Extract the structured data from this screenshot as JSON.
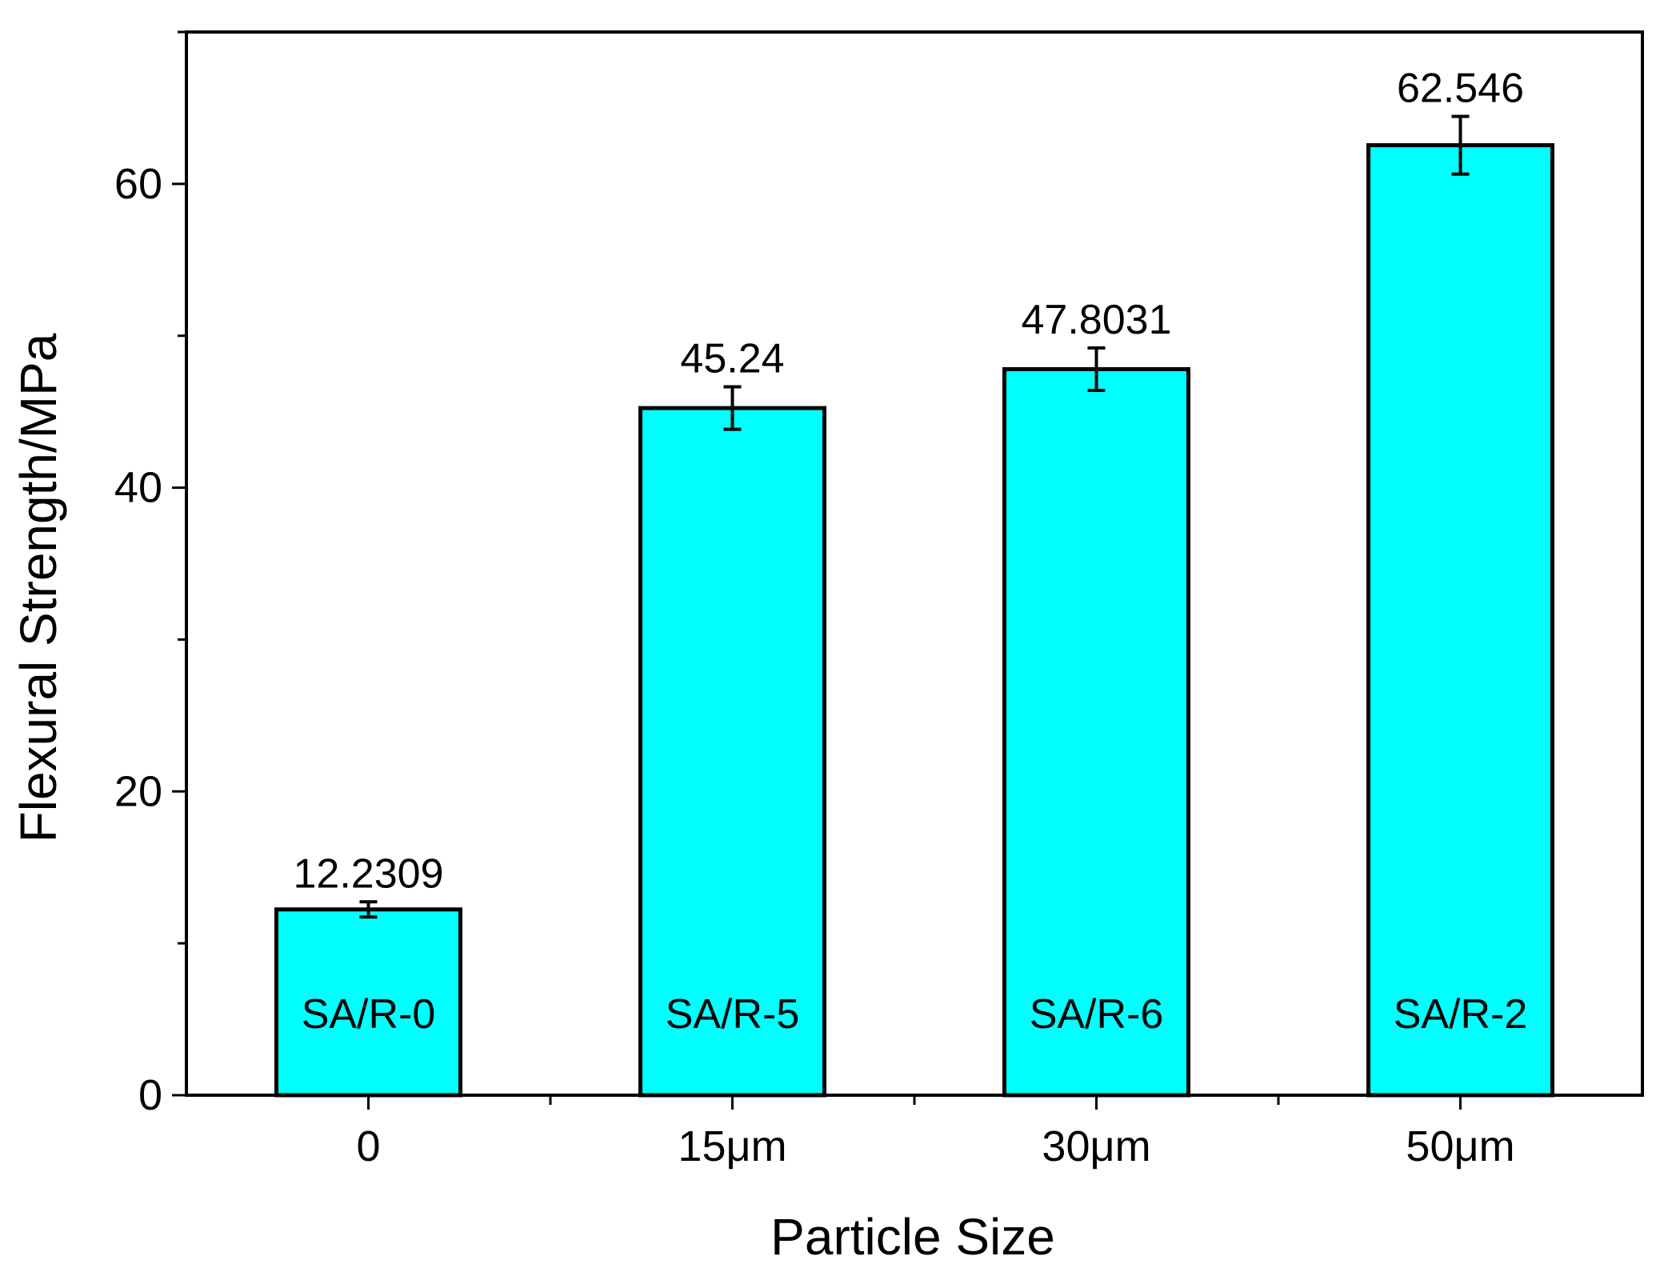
{
  "chart_data": {
    "type": "bar",
    "xlabel": "Particle Size",
    "ylabel": "Flexural Strength/MPa",
    "ylim": [
      0,
      70
    ],
    "yticks": [
      0,
      20,
      40,
      60
    ],
    "y_minor_step": 10,
    "grid": false,
    "categories": [
      "0",
      "15μm",
      "30μm",
      "50μm"
    ],
    "values": [
      12.2309,
      45.24,
      47.8031,
      62.546
    ],
    "errors": [
      0.5,
      1.4,
      1.4,
      1.9
    ],
    "value_labels": [
      "12.2309",
      "45.24",
      "47.8031",
      "62.546"
    ],
    "bar_labels": [
      "SA/R-0",
      "SA/R-5",
      "SA/R-6",
      "SA/R-2"
    ],
    "bar_color": "#00FFFF",
    "edge_color": "#000000"
  }
}
